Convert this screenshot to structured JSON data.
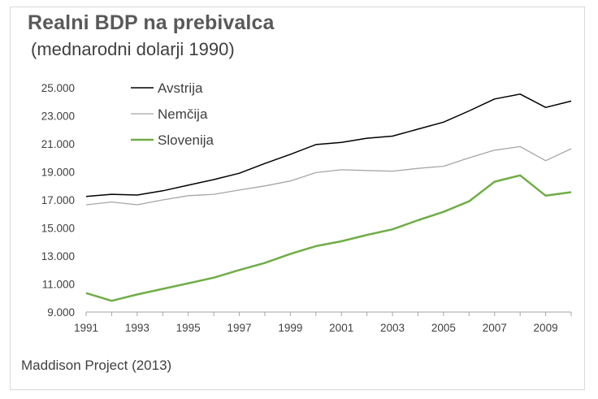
{
  "chart_data": {
    "type": "line",
    "title": "Realni BDP na prebivalca",
    "subtitle": "(mednarodni dolarji 1990)",
    "source": "Maddison Project (2013)",
    "xlabel": "",
    "ylabel": "",
    "ylim": [
      9000,
      25000
    ],
    "yticks": [
      9000,
      11000,
      13000,
      15000,
      17000,
      19000,
      21000,
      23000,
      25000
    ],
    "ytick_labels": [
      "9.000",
      "11.000",
      "13.000",
      "15.000",
      "17.000",
      "19.000",
      "21.000",
      "23.000",
      "25.000"
    ],
    "xlim": [
      1991,
      2010
    ],
    "xtick_labels": [
      "1991",
      "1993",
      "1995",
      "1997",
      "1999",
      "2001",
      "2003",
      "2005",
      "2007",
      "2009"
    ],
    "x": [
      1991,
      1992,
      1993,
      1994,
      1995,
      1996,
      1997,
      1998,
      1999,
      2000,
      2001,
      2002,
      2003,
      2004,
      2005,
      2006,
      2007,
      2008,
      2009,
      2010
    ],
    "legend_position": "top-left",
    "grid": false,
    "series": [
      {
        "name": "Avstrija",
        "color": "#000000",
        "values": [
          17250,
          17400,
          17350,
          17650,
          18050,
          18450,
          18900,
          19600,
          20250,
          20950,
          21100,
          21400,
          21550,
          22050,
          22550,
          23350,
          24200,
          24550,
          23600,
          24050
        ]
      },
      {
        "name": "Nemčija",
        "color": "#a6a6a6",
        "values": [
          16650,
          16850,
          16650,
          17000,
          17300,
          17400,
          17700,
          18000,
          18350,
          18950,
          19150,
          19100,
          19050,
          19250,
          19400,
          20000,
          20550,
          20800,
          19800,
          20650
        ]
      },
      {
        "name": "Slovenija",
        "color": "#70ad47",
        "values": [
          10350,
          9800,
          10250,
          10650,
          11050,
          11450,
          12000,
          12500,
          13150,
          13700,
          14050,
          14500,
          14900,
          15550,
          16150,
          16900,
          18300,
          18750,
          17300,
          17550
        ]
      }
    ]
  }
}
